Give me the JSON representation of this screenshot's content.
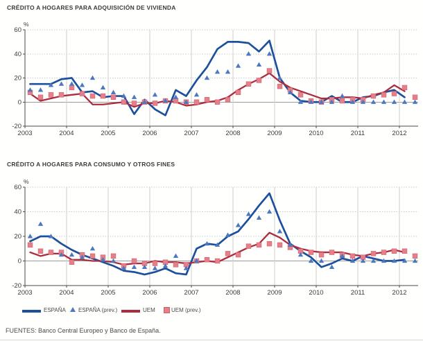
{
  "page": {
    "footer": "FUENTES: Banco Central Europeo y Banco de España."
  },
  "legend": {
    "espana": "ESPAÑA",
    "espana_prev": "ESPAÑA (prev.)",
    "uem": "UEM",
    "uem_prev": "UEM (prev.)"
  },
  "colors": {
    "espana": "#1c4f9c",
    "espana_prev": "#4c78bf",
    "uem": "#ab2c3e",
    "uem_prev": "#e5808b",
    "uem_prev_border": "#cf5f6d",
    "grid_dotted": "#c9c9c9",
    "grid_year": "#cfcfcf",
    "zero_line": "#9b9b9b",
    "axis": "#4a4a4a",
    "tick_text": "#3b3b3b"
  },
  "chart_data": [
    {
      "type": "line",
      "title": "CRÉDITO A HOGARES PARA ADQUISICIÓN DE VIVIENDA",
      "ylabel": "%",
      "ylim": [
        -20,
        60
      ],
      "yticks": [
        -20,
        0,
        20,
        40,
        60
      ],
      "grid": "dotted-horizontal-plus-year-verticals",
      "legend_position": "below-bottom-chart",
      "categories": [
        "2003",
        "2004",
        "2005",
        "2006",
        "2007",
        "2008",
        "2009",
        "2010",
        "2011",
        "2012"
      ],
      "x_frequency": "quarterly",
      "series": [
        {
          "name": "ESPAÑA",
          "style": "line",
          "color_key": "espana",
          "values": [
            15,
            15,
            15,
            19,
            20,
            8,
            9,
            4,
            5,
            5,
            -10,
            2,
            -6,
            -11,
            10,
            5,
            18,
            29,
            44,
            50,
            50,
            49,
            42,
            51,
            20,
            8,
            1,
            0,
            0,
            5,
            0,
            0,
            4,
            5,
            8,
            10,
            4,
            null
          ]
        },
        {
          "name": "ESPAÑA (prev.)",
          "style": "triangle",
          "color_key": "espana_prev",
          "values": [
            10,
            10,
            14,
            15,
            15,
            14,
            20,
            12,
            8,
            5,
            4,
            0,
            6,
            1,
            4,
            0,
            6,
            20,
            25,
            25,
            30,
            40,
            31,
            40,
            20,
            8,
            0,
            0,
            0,
            0,
            5,
            0,
            0,
            0,
            0,
            0,
            0,
            0
          ]
        },
        {
          "name": "UEM",
          "style": "line",
          "color_key": "uem",
          "values": [
            7,
            1,
            3,
            5,
            6,
            7,
            -2,
            -2,
            -1,
            0,
            -4,
            -1,
            -1,
            1,
            0,
            -3,
            -2,
            0,
            1,
            4,
            10,
            15,
            19,
            24,
            17,
            12,
            9,
            6,
            3,
            3,
            4,
            4,
            3,
            6,
            8,
            14,
            9,
            null
          ]
        },
        {
          "name": "UEM (prev.)",
          "style": "square",
          "color_key": "uem_prev",
          "values": [
            8,
            4,
            6,
            6,
            12,
            7,
            5,
            5,
            4,
            0,
            -1,
            0,
            -1,
            1,
            1,
            0,
            0,
            2,
            0,
            2,
            8,
            15,
            18,
            26,
            13,
            10,
            6,
            1,
            0,
            2,
            1,
            2,
            2,
            5,
            6,
            7,
            12,
            4
          ]
        }
      ]
    },
    {
      "type": "line",
      "title": "CRÉDITO A HOGARES PARA CONSUMO Y OTROS FINES",
      "ylabel": "%",
      "ylim": [
        -20,
        60
      ],
      "yticks": [
        -20,
        0,
        20,
        40,
        60
      ],
      "grid": "dotted-horizontal-plus-year-verticals",
      "categories": [
        "2003",
        "2004",
        "2005",
        "2006",
        "2007",
        "2008",
        "2009",
        "2010",
        "2011",
        "2012"
      ],
      "x_frequency": "quarterly",
      "series": [
        {
          "name": "ESPAÑA",
          "style": "line",
          "color_key": "espana",
          "values": [
            16,
            20,
            20,
            14,
            9,
            5,
            2,
            -1,
            -4,
            -8,
            -9,
            -11,
            -9,
            -6,
            -10,
            -11,
            10,
            14,
            13,
            20,
            24,
            34,
            45,
            55,
            33,
            14,
            8,
            3,
            -5,
            -2,
            2,
            0,
            4,
            2,
            0,
            0,
            1,
            null
          ]
        },
        {
          "name": "ESPAÑA (prev.)",
          "style": "triangle",
          "color_key": "espana_prev",
          "values": [
            20,
            30,
            20,
            5,
            5,
            3,
            10,
            1,
            0,
            -6,
            -5,
            -5,
            -6,
            -4,
            4,
            -6,
            0,
            14,
            13,
            21,
            29,
            38,
            35,
            40,
            24,
            13,
            5,
            0,
            0,
            -5,
            4,
            0,
            0,
            0,
            0,
            0,
            0,
            0
          ]
        },
        {
          "name": "UEM",
          "style": "line",
          "color_key": "uem",
          "values": [
            7,
            4,
            6,
            6,
            1,
            1,
            0,
            0,
            -1,
            -3,
            -2,
            -2,
            0,
            -1,
            -1,
            -2,
            -1,
            0,
            -1,
            3,
            7,
            11,
            14,
            23,
            19,
            13,
            10,
            8,
            7,
            7,
            7,
            5,
            4,
            6,
            7,
            9,
            7,
            null
          ]
        },
        {
          "name": "UEM (prev.)",
          "style": "square",
          "color_key": "uem_prev",
          "values": [
            13,
            8,
            7,
            7,
            -1,
            5,
            4,
            3,
            4,
            -4,
            0,
            -2,
            -2,
            -1,
            -3,
            -3,
            0,
            1,
            0,
            6,
            5,
            12,
            13,
            14,
            13,
            11,
            8,
            7,
            5,
            7,
            5,
            4,
            3,
            6,
            7,
            8,
            8,
            4
          ]
        }
      ]
    }
  ]
}
